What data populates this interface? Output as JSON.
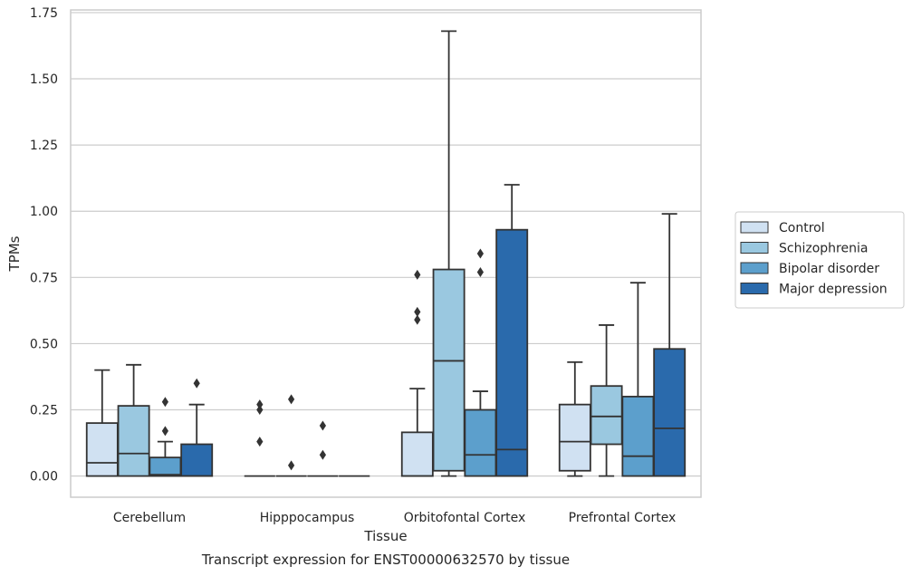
{
  "caption": "Transcript expression for ENST00000632570 by tissue",
  "chart_data": {
    "type": "boxplot",
    "title": "",
    "xlabel": "Tissue",
    "ylabel": "TPMs",
    "ylim": [
      -0.08,
      1.76
    ],
    "yticks": [
      "0.00",
      "0.25",
      "0.50",
      "0.75",
      "1.00",
      "1.25",
      "1.50",
      "1.75"
    ],
    "ytick_values": [
      0,
      0.25,
      0.5,
      0.75,
      1.0,
      1.25,
      1.5,
      1.75
    ],
    "grid": "horizontal",
    "legend_position": "right",
    "categories": [
      "Cerebellum",
      "Hipppocampus",
      "Orbitofontal Cortex",
      "Prefrontal Cortex"
    ],
    "series": [
      {
        "name": "Control",
        "color": "#d0e1f2",
        "boxes": [
          {
            "whislo": 0,
            "q1": 0,
            "med": 0.05,
            "q3": 0.2,
            "whishi": 0.4,
            "fliers": []
          },
          {
            "whislo": 0,
            "q1": 0,
            "med": 0,
            "q3": 0,
            "whishi": 0,
            "fliers": [
              0.13,
              0.25,
              0.27
            ]
          },
          {
            "whislo": 0,
            "q1": 0,
            "med": 0,
            "q3": 0.165,
            "whishi": 0.33,
            "fliers": [
              0.59,
              0.62,
              0.76
            ]
          },
          {
            "whislo": 0,
            "q1": 0.02,
            "med": 0.13,
            "q3": 0.27,
            "whishi": 0.43,
            "fliers": []
          }
        ]
      },
      {
        "name": "Schizophrenia",
        "color": "#9ac8e0",
        "boxes": [
          {
            "whislo": 0,
            "q1": 0,
            "med": 0.085,
            "q3": 0.265,
            "whishi": 0.42,
            "fliers": []
          },
          {
            "whislo": 0,
            "q1": 0,
            "med": 0,
            "q3": 0,
            "whishi": 0,
            "fliers": [
              0.04,
              0.29
            ]
          },
          {
            "whislo": 0,
            "q1": 0.02,
            "med": 0.435,
            "q3": 0.78,
            "whishi": 1.68,
            "fliers": []
          },
          {
            "whislo": 0,
            "q1": 0.12,
            "med": 0.225,
            "q3": 0.34,
            "whishi": 0.57,
            "fliers": []
          }
        ]
      },
      {
        "name": "Bipolar disorder",
        "color": "#5c9fcc",
        "boxes": [
          {
            "whislo": 0,
            "q1": 0,
            "med": 0.005,
            "q3": 0.07,
            "whishi": 0.13,
            "fliers": [
              0.17,
              0.28
            ]
          },
          {
            "whislo": 0,
            "q1": 0,
            "med": 0,
            "q3": 0,
            "whishi": 0,
            "fliers": [
              0.08,
              0.19
            ]
          },
          {
            "whislo": 0,
            "q1": 0,
            "med": 0.08,
            "q3": 0.25,
            "whishi": 0.32,
            "fliers": [
              0.77,
              0.84
            ]
          },
          {
            "whislo": 0,
            "q1": 0,
            "med": 0.075,
            "q3": 0.3,
            "whishi": 0.73,
            "fliers": []
          }
        ]
      },
      {
        "name": "Major depression",
        "color": "#2a6aac",
        "boxes": [
          {
            "whislo": 0,
            "q1": 0,
            "med": 0,
            "q3": 0.12,
            "whishi": 0.27,
            "fliers": [
              0.35
            ]
          },
          {
            "whislo": 0,
            "q1": 0,
            "med": 0,
            "q3": 0,
            "whishi": 0,
            "fliers": []
          },
          {
            "whislo": 0,
            "q1": 0,
            "med": 0.1,
            "q3": 0.93,
            "whishi": 1.1,
            "fliers": []
          },
          {
            "whislo": 0,
            "q1": 0,
            "med": 0.18,
            "q3": 0.48,
            "whishi": 0.99,
            "fliers": []
          }
        ]
      }
    ]
  }
}
